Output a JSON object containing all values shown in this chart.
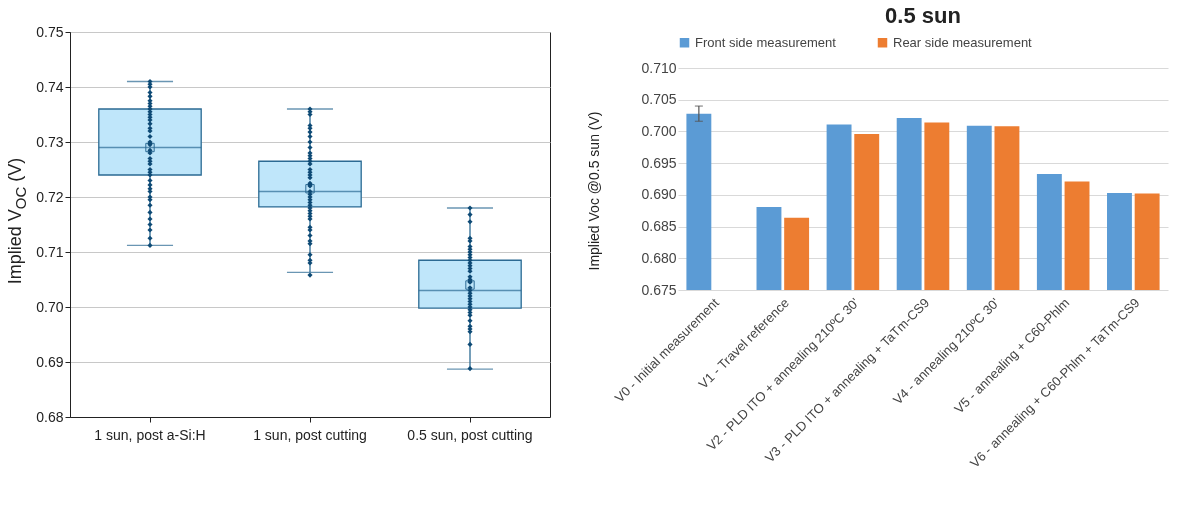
{
  "chart_data": [
    {
      "type": "box",
      "ylabel": "Implied V$_{OC}$ (V)",
      "categories": [
        "1 sun, post a-Si:H",
        "1 sun, post cutting",
        "0.5 sun, post cutting"
      ],
      "boxes": [
        {
          "low": 0.7112,
          "q1": 0.724,
          "median": 0.729,
          "q3": 0.736,
          "high": 0.741,
          "mean": 0.729
        },
        {
          "low": 0.7063,
          "q1": 0.7182,
          "median": 0.721,
          "q3": 0.7265,
          "high": 0.736,
          "mean": 0.7215
        },
        {
          "low": 0.6887,
          "q1": 0.6998,
          "median": 0.703,
          "q3": 0.7085,
          "high": 0.718,
          "mean": 0.704
        }
      ],
      "ylim": [
        0.68,
        0.75
      ],
      "yticks": [
        0.68,
        0.69,
        {
          "value": 0.7,
          "label": "0.70"
        },
        0.71,
        0.72,
        0.73,
        0.74,
        0.75
      ],
      "grid": "y",
      "series": [
        {
          "type": "scatter",
          "marker": "diamond",
          "color": "#0e4a75",
          "x": [
            "1 sun, post a-Si:H",
            "1 sun, post a-Si:H",
            "1 sun, post a-Si:H",
            "1 sun, post a-Si:H",
            "1 sun, post a-Si:H",
            "1 sun, post a-Si:H",
            "1 sun, post a-Si:H",
            "1 sun, post a-Si:H",
            "1 sun, post a-Si:H",
            "1 sun, post a-Si:H",
            "1 sun, post a-Si:H",
            "1 sun, post a-Si:H",
            "1 sun, post a-Si:H",
            "1 sun, post a-Si:H",
            "1 sun, post a-Si:H",
            "1 sun, post a-Si:H",
            "1 sun, post a-Si:H",
            "1 sun, post a-Si:H",
            "1 sun, post a-Si:H",
            "1 sun, post a-Si:H",
            "1 sun, post a-Si:H",
            "1 sun, post a-Si:H",
            "1 sun, post a-Si:H",
            "1 sun, post a-Si:H",
            "1 sun, post a-Si:H",
            "1 sun, post a-Si:H",
            "1 sun, post a-Si:H",
            "1 sun, post a-Si:H",
            "1 sun, post a-Si:H",
            "1 sun, post a-Si:H",
            "1 sun, post a-Si:H",
            "1 sun, post a-Si:H",
            "1 sun, post a-Si:H",
            "1 sun, post a-Si:H",
            "1 sun, post a-Si:H",
            "1 sun, post a-Si:H",
            "1 sun, post a-Si:H",
            "1 sun, post a-Si:H",
            "1 sun, post a-Si:H",
            "1 sun, post a-Si:H",
            "1 sun, post a-Si:H",
            "1 sun, post cutting",
            "1 sun, post cutting",
            "1 sun, post cutting",
            "1 sun, post cutting",
            "1 sun, post cutting",
            "1 sun, post cutting",
            "1 sun, post cutting",
            "1 sun, post cutting",
            "1 sun, post cutting",
            "1 sun, post cutting",
            "1 sun, post cutting",
            "1 sun, post cutting",
            "1 sun, post cutting",
            "1 sun, post cutting",
            "1 sun, post cutting",
            "1 sun, post cutting",
            "1 sun, post cutting",
            "1 sun, post cutting",
            "1 sun, post cutting",
            "1 sun, post cutting",
            "1 sun, post cutting",
            "1 sun, post cutting",
            "1 sun, post cutting",
            "1 sun, post cutting",
            "1 sun, post cutting",
            "1 sun, post cutting",
            "1 sun, post cutting",
            "1 sun, post cutting",
            "1 sun, post cutting",
            "1 sun, post cutting",
            "1 sun, post cutting",
            "1 sun, post cutting",
            "1 sun, post cutting",
            "1 sun, post cutting",
            "1 sun, post cutting",
            "1 sun, post cutting",
            "1 sun, post cutting",
            "1 sun, post cutting",
            "1 sun, post cutting",
            "1 sun, post cutting",
            "1 sun, post cutting",
            "0.5 sun, post cutting",
            "0.5 sun, post cutting",
            "0.5 sun, post cutting",
            "0.5 sun, post cutting",
            "0.5 sun, post cutting",
            "0.5 sun, post cutting",
            "0.5 sun, post cutting",
            "0.5 sun, post cutting",
            "0.5 sun, post cutting",
            "0.5 sun, post cutting",
            "0.5 sun, post cutting",
            "0.5 sun, post cutting",
            "0.5 sun, post cutting",
            "0.5 sun, post cutting",
            "0.5 sun, post cutting",
            "0.5 sun, post cutting",
            "0.5 sun, post cutting",
            "0.5 sun, post cutting",
            "0.5 sun, post cutting",
            "0.5 sun, post cutting",
            "0.5 sun, post cutting",
            "0.5 sun, post cutting",
            "0.5 sun, post cutting",
            "0.5 sun, post cutting",
            "0.5 sun, post cutting",
            "0.5 sun, post cutting",
            "0.5 sun, post cutting",
            "0.5 sun, post cutting",
            "0.5 sun, post cutting",
            "0.5 sun, post cutting",
            "0.5 sun, post cutting",
            "0.5 sun, post cutting",
            "0.5 sun, post cutting",
            "0.5 sun, post cutting",
            "0.5 sun, post cutting",
            "0.5 sun, post cutting"
          ],
          "values": [
            0.741,
            0.7405,
            0.74,
            0.739,
            0.7383,
            0.7375,
            0.737,
            0.7365,
            0.736,
            0.7355,
            0.735,
            0.7345,
            0.734,
            0.7333,
            0.7325,
            0.732,
            0.731,
            0.73,
            0.7295,
            0.7297,
            0.7285,
            0.728,
            0.727,
            0.7265,
            0.726,
            0.725,
            0.7245,
            0.724,
            0.723,
            0.7222,
            0.7215,
            0.721,
            0.72,
            0.7195,
            0.7185,
            0.7172,
            0.716,
            0.715,
            0.714,
            0.7125,
            0.7112,
            0.736,
            0.7355,
            0.735,
            0.733,
            0.7325,
            0.7318,
            0.731,
            0.73,
            0.729,
            0.728,
            0.7275,
            0.727,
            0.7265,
            0.726,
            0.725,
            0.7245,
            0.724,
            0.7235,
            0.7225,
            0.722,
            0.7222,
            0.721,
            0.7205,
            0.72,
            0.7195,
            0.719,
            0.7185,
            0.718,
            0.7175,
            0.717,
            0.7165,
            0.716,
            0.7145,
            0.714,
            0.713,
            0.712,
            0.7115,
            0.7095,
            0.7085,
            0.708,
            0.7058,
            0.718,
            0.7168,
            0.7155,
            0.7125,
            0.712,
            0.711,
            0.7105,
            0.71,
            0.7095,
            0.709,
            0.7085,
            0.708,
            0.7075,
            0.707,
            0.7065,
            0.7055,
            0.705,
            0.7045,
            0.7047,
            0.7035,
            0.703,
            0.7025,
            0.702,
            0.7015,
            0.701,
            0.7005,
            0.7,
            0.6995,
            0.699,
            0.6985,
            0.6975,
            0.6965,
            0.696,
            0.6955,
            0.6932,
            0.6888
          ]
        }
      ]
    },
    {
      "type": "bar",
      "title": "0.5 sun",
      "ylabel": "Implied Voc @0.5 sun (V)",
      "legend": "top",
      "categories": [
        "V0 - Initial measurement",
        "V1 - Travel reference",
        "V2 - PLD ITO + annealing 210ºC 30'",
        "V3 - PLD ITO + annealing + TaTm-CS9",
        "V4 - annealing 210ºC 30'",
        "V5 - annealing + C60-Phlm",
        "V6 - annealing + C60-Phlm + TaTm-CS9"
      ],
      "ylim": [
        0.675,
        0.71
      ],
      "yticks": [
        0.675,
        {
          "value": 0.68,
          "label": "0.680"
        },
        0.685,
        {
          "value": 0.69,
          "label": "0.690"
        },
        0.695,
        {
          "value": 0.7,
          "label": "0.700"
        },
        0.705,
        {
          "value": 0.71,
          "label": "0.710"
        }
      ],
      "grid": "y",
      "series": [
        {
          "name": "Front side measurement",
          "color": "#5b9bd5",
          "values": [
            0.7028,
            0.6881,
            0.7011,
            0.7021,
            0.7009,
            0.6933,
            0.6903
          ],
          "errors": [
            0.0012,
            null,
            null,
            null,
            null,
            null,
            null
          ]
        },
        {
          "name": "Rear side measurement",
          "color": "#ed7d31",
          "values": [
            null,
            0.6864,
            0.6996,
            0.7014,
            0.7008,
            0.6921,
            0.6902
          ]
        }
      ]
    }
  ]
}
